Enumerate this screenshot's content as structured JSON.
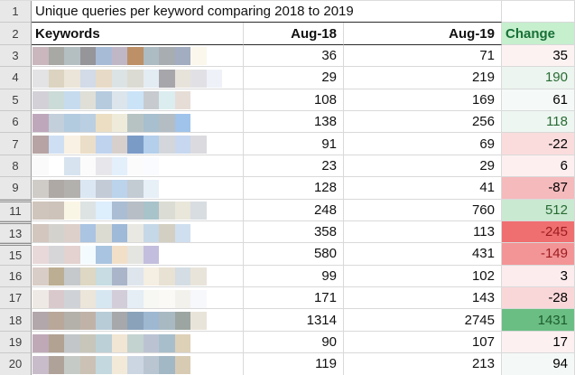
{
  "sheet": {
    "title": "Unique queries per keyword comparing 2018 to 2019",
    "gutter": {
      "row1": "1",
      "row2": "2"
    },
    "headers": {
      "keywords": "Keywords",
      "aug18": "Aug-18",
      "aug19": "Aug-19",
      "change": "Change",
      "change_bg": "#c6efce",
      "change_fg": "#176f35"
    },
    "colors": {
      "gridline": "#d9d9d9",
      "dark_border": "#2a2a2a",
      "gutter_bg": "#e8e8e8",
      "positive_text": "#276b32",
      "strong_positive_text": "#1d5c2e",
      "negative_text": "#9c1b1e",
      "neutral_text": "#000000"
    },
    "rows": [
      {
        "num": "3",
        "hidden_above": false,
        "aug18": "36",
        "aug19": "71",
        "change": "35",
        "change_bg": "#fdf2f2",
        "change_fg": "#000000",
        "mosaic": [
          "#c9b7bd",
          "#a8a8a5",
          "#b4bfc2",
          "#95959a",
          "#a8bbd6",
          "#bfb7c5",
          "#bd9067",
          "#adbbc3",
          "#a8adb2",
          "#a2adc1",
          "#fbf7ec"
        ]
      },
      {
        "num": "4",
        "hidden_above": false,
        "aug18": "29",
        "aug19": "219",
        "change": "190",
        "change_bg": "#ecf5ef",
        "change_fg": "#276b32",
        "mosaic": [
          "#e3e3e5",
          "#dcd4c1",
          "#ebe5d9",
          "#d2dbe7",
          "#e7dbc7",
          "#dce3e5",
          "#dbdbd3",
          "#e3ebf3",
          "#a7a7ab",
          "#e7e3db",
          "#e1e1e5",
          "#eef2f8"
        ]
      },
      {
        "num": "5",
        "hidden_above": false,
        "aug18": "108",
        "aug19": "169",
        "change": "61",
        "change_bg": "#f5faf8",
        "change_fg": "#000000",
        "mosaic": [
          "#d3d1d7",
          "#cbdbd7",
          "#c7dbee",
          "#dfdfd7",
          "#b7cbdf",
          "#dbe5eb",
          "#cbe3f7",
          "#c7cbcf",
          "#dbedef",
          "#e7ddd7"
        ]
      },
      {
        "num": "6",
        "hidden_above": false,
        "aug18": "138",
        "aug19": "256",
        "change": "118",
        "change_bg": "#eef6f1",
        "change_fg": "#276b32",
        "mosaic": [
          "#bfa7bb",
          "#c3cfdb",
          "#b3cbdf",
          "#bbcfe3",
          "#ebdec3",
          "#efebdb",
          "#b7c3c3",
          "#a7bfcf",
          "#b3bdc3",
          "#9fc3eb"
        ]
      },
      {
        "num": "7",
        "hidden_above": false,
        "aug18": "91",
        "aug19": "69",
        "change": "-22",
        "change_bg": "#fadcdd",
        "change_fg": "#000000",
        "mosaic": [
          "#b7a3a3",
          "#cfdff3",
          "#f9f1e3",
          "#ebdec8",
          "#bfd3ef",
          "#d7cfcb",
          "#7b9bc7",
          "#b3cfeb",
          "#d3d7db",
          "#c7d7ef",
          "#dbdbdf"
        ]
      },
      {
        "num": "8",
        "hidden_above": false,
        "aug18": "23",
        "aug19": "29",
        "change": "6",
        "change_bg": "#fdeff0",
        "change_fg": "#000000",
        "mosaic": [
          "#fafafa",
          "#ffffff",
          "#d7e3ef",
          "#fbfbfb",
          "#e7e7eb",
          "#e3effb",
          "#fbfbfb",
          "#f9fbff"
        ]
      },
      {
        "num": "9",
        "hidden_above": false,
        "aug18": "128",
        "aug19": "41",
        "change": "-87",
        "change_bg": "#f5babc",
        "change_fg": "#000000",
        "mosaic": [
          "#cfcbc7",
          "#afa9a5",
          "#b3b1ae",
          "#dbe7f3",
          "#c3cbd7",
          "#bbd3eb",
          "#c3cbd3",
          "#e7eff7"
        ]
      },
      {
        "num": "11",
        "hidden_above": true,
        "aug18": "248",
        "aug19": "760",
        "change": "512",
        "change_bg": "#c9e9d1",
        "change_fg": "#276b32",
        "mosaic": [
          "#d0c5bc",
          "#cdc3ba",
          "#faf6e6",
          "#dde3e3",
          "#ddeefc",
          "#aabdd3",
          "#b8bec5",
          "#a9c3ca",
          "#dbdcd3",
          "#e9e6da",
          "#d8dde2"
        ]
      },
      {
        "num": "13",
        "hidden_above": true,
        "aug18": "358",
        "aug19": "113",
        "change": "-245",
        "change_bg": "#ef6e70",
        "change_fg": "#9c1b1e",
        "mosaic": [
          "#d3c6bf",
          "#d4d2cc",
          "#ddd0cb",
          "#aac4e2",
          "#dcdbd1",
          "#9fb9d8",
          "#e9e8e2",
          "#c5d8e8",
          "#d3cfc2",
          "#cfdff0"
        ]
      },
      {
        "num": "15",
        "hidden_above": true,
        "aug18": "580",
        "aug19": "431",
        "change": "-149",
        "change_bg": "#f39496",
        "change_fg": "#9c1b1e",
        "mosaic": [
          "#e8d8da",
          "#d6d6d8",
          "#e3d2d0",
          "#f4fbff",
          "#a9c4e0",
          "#f2dfc8",
          "#e4e4e0",
          "#c3bedd"
        ]
      },
      {
        "num": "16",
        "hidden_above": false,
        "aug18": "99",
        "aug19": "102",
        "change": "3",
        "change_bg": "#fceced",
        "change_fg": "#000000",
        "mosaic": [
          "#d9cdc7",
          "#bcae92",
          "#c6c9cc",
          "#ddd7c3",
          "#c7dce3",
          "#aab5c9",
          "#dfe5ec",
          "#f5eee2",
          "#e8e2d4",
          "#d4dde4",
          "#e9e4da"
        ]
      },
      {
        "num": "17",
        "hidden_above": false,
        "aug18": "171",
        "aug19": "143",
        "change": "-28",
        "change_bg": "#f9d7d9",
        "change_fg": "#000000",
        "mosaic": [
          "#efe9e5",
          "#d9c9cc",
          "#cfd3d7",
          "#ece5d9",
          "#d7e7f1",
          "#d3ccd9",
          "#e5edf5",
          "#f7f7f3",
          "#fbf9f5",
          "#f3f1ec",
          "#f6f8fb"
        ]
      },
      {
        "num": "18",
        "hidden_above": false,
        "aug18": "1314",
        "aug19": "2745",
        "change": "1431",
        "change_bg": "#6abe83",
        "change_fg": "#1d5c2e",
        "mosaic": [
          "#b2a7aa",
          "#b9a79a",
          "#b4b1aa",
          "#c1b2a8",
          "#b8ccd8",
          "#a6a8ab",
          "#8aa2ba",
          "#9eb8d2",
          "#a8b9c2",
          "#9ca5a1",
          "#e9e4d9"
        ]
      },
      {
        "num": "19",
        "hidden_above": false,
        "aug18": "90",
        "aug19": "107",
        "change": "17",
        "change_bg": "#fcf0f1",
        "change_fg": "#000000",
        "mosaic": [
          "#bfa9b7",
          "#b2a292",
          "#c2c6c8",
          "#c8c5ba",
          "#bbd1d7",
          "#f1e5d3",
          "#c3d3cf",
          "#bbc3d3",
          "#a8bfcb",
          "#ddd1b8"
        ]
      },
      {
        "num": "20",
        "hidden_above": false,
        "aug18": "119",
        "aug19": "213",
        "change": "94",
        "change_bg": "#f4f9f7",
        "change_fg": "#000000",
        "mosaic": [
          "#c8bbca",
          "#afa399",
          "#c6cac6",
          "#cbc2b5",
          "#c3d9df",
          "#f3e9d9",
          "#ccd6e2",
          "#b9c6d1",
          "#a2b8c4",
          "#d8cbb4"
        ]
      }
    ]
  }
}
